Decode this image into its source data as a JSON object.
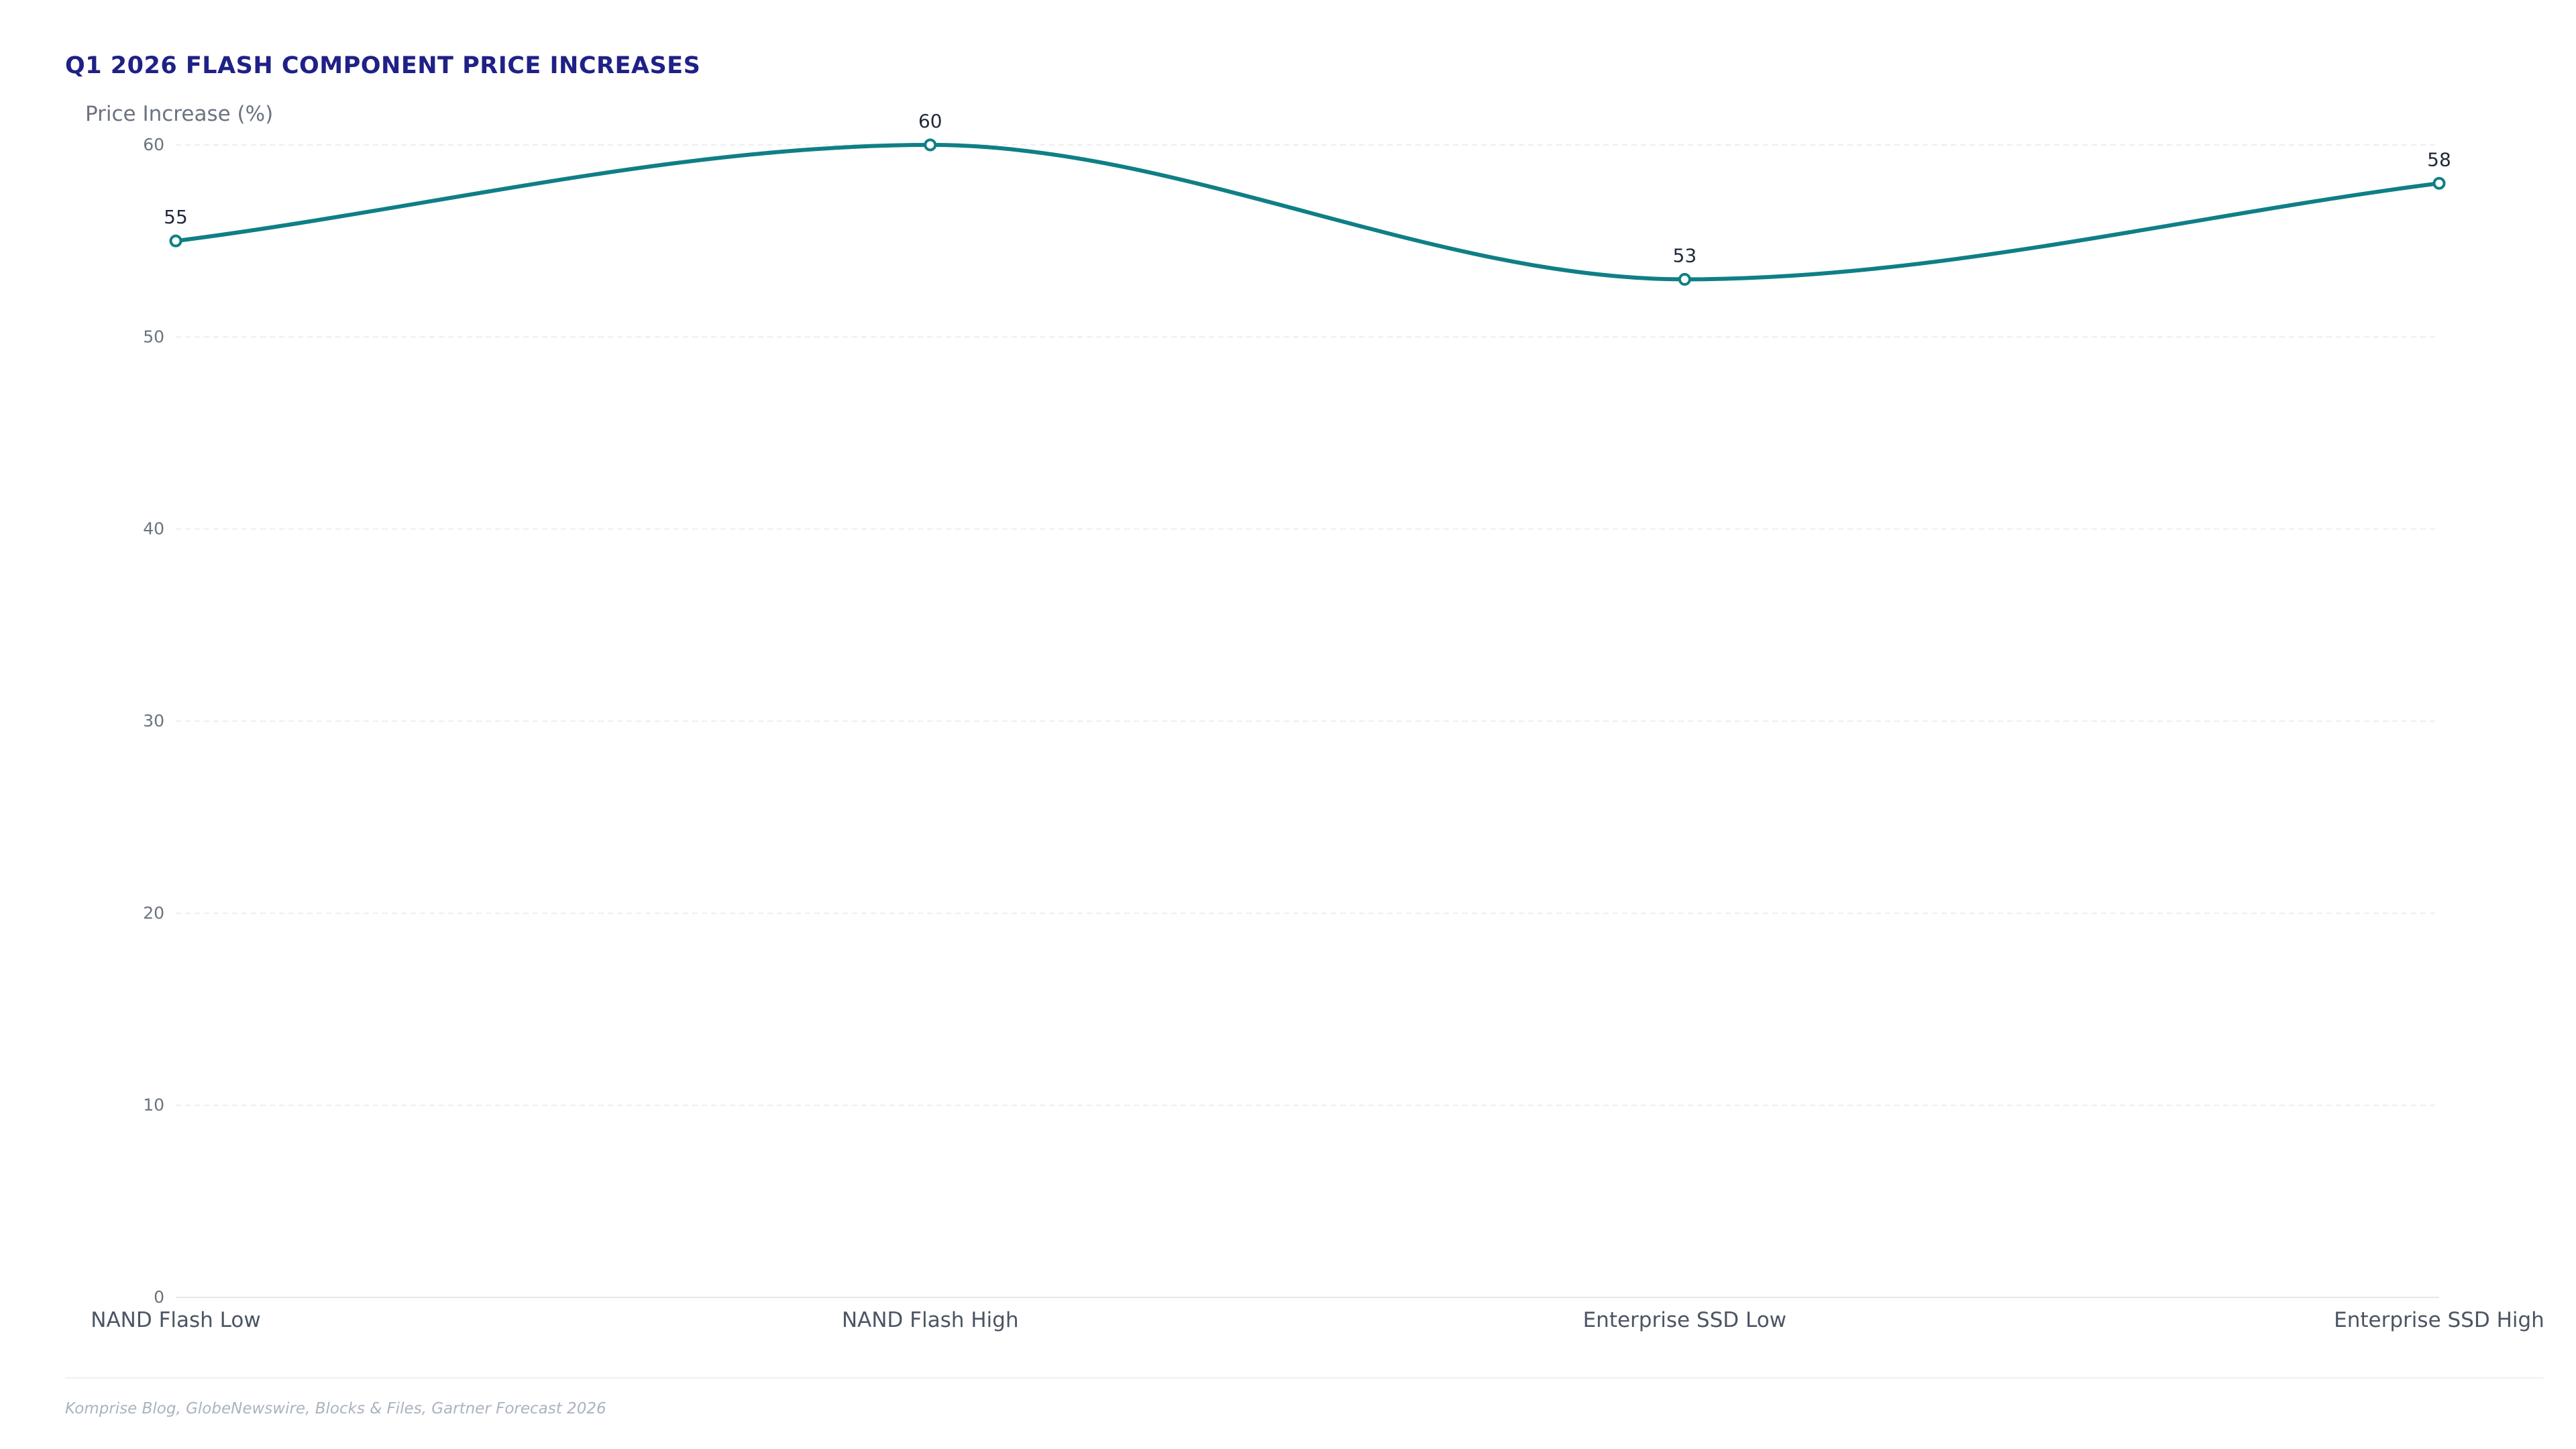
{
  "chart_data": {
    "type": "line",
    "title": "Q1 2026 FLASH COMPONENT PRICE INCREASES",
    "ylabel": "Price Increase (%)",
    "xlabel": "",
    "categories": [
      "NAND Flash Low",
      "NAND Flash High",
      "Enterprise SSD Low",
      "Enterprise SSD High"
    ],
    "series": [
      {
        "values": [
          55,
          60,
          53,
          58
        ]
      }
    ],
    "data_labels": [
      "55",
      "60",
      "53",
      "58"
    ],
    "ylim": [
      0,
      60
    ],
    "yticks": [
      0,
      10,
      20,
      30,
      40,
      50,
      60
    ],
    "ytick_labels": [
      "0",
      "10",
      "20",
      "30",
      "40",
      "50",
      "60"
    ],
    "grid": true,
    "smooth": true,
    "line_color": "#0f7f86",
    "title_color": "#1f2187"
  },
  "source": "Komprise Blog, GlobeNewswire, Blocks & Files, Gartner Forecast 2026"
}
